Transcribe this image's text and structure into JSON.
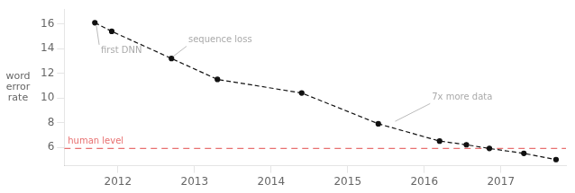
{
  "chart_data": {
    "type": "line",
    "ylabel": "word\nerror\nrate",
    "x": [
      2011.7,
      2011.92,
      2012.7,
      2013.3,
      2014.4,
      2015.4,
      2016.2,
      2016.55,
      2016.85,
      2017.3,
      2017.72
    ],
    "values": [
      16.1,
      15.4,
      13.2,
      11.5,
      10.4,
      7.9,
      6.5,
      6.2,
      5.9,
      5.5,
      5.0
    ],
    "color": "#111111",
    "line_style": "dashed",
    "marker": "circle",
    "xlim": [
      2011.3,
      2017.85
    ],
    "ylim": [
      4.5,
      17.2
    ],
    "xticks": [
      2012,
      2013,
      2014,
      2015,
      2016,
      2017
    ],
    "yticks": [
      6,
      8,
      10,
      12,
      14,
      16
    ],
    "grid": false,
    "hline": {
      "value": 5.9,
      "label": "human level",
      "color": "#e87070"
    },
    "annotations": [
      {
        "text": "first DNN",
        "x": 2011.72,
        "y": 15.85,
        "text_x": 2011.78,
        "text_y": 13.8,
        "color": "#aaaaaa"
      },
      {
        "text": "sequence loss",
        "x": 2012.72,
        "y": 13.35,
        "text_x": 2012.92,
        "text_y": 14.7,
        "color": "#aaaaaa"
      },
      {
        "text": "7x more data",
        "x": 2015.62,
        "y": 8.1,
        "text_x": 2016.1,
        "text_y": 10.05,
        "color": "#aaaaaa"
      }
    ]
  }
}
